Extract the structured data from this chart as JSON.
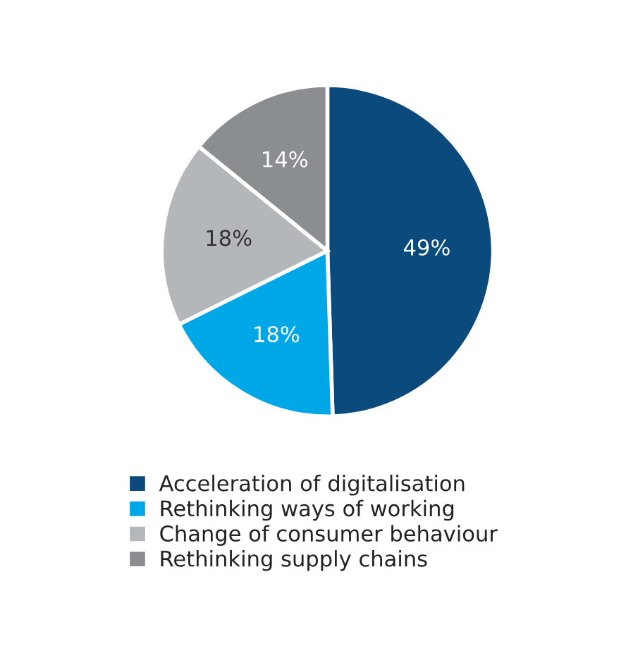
{
  "chart_data": {
    "type": "pie",
    "categories": [
      "Acceleration of digitalisation",
      "Rethinking ways of working",
      "Change of consumer behaviour",
      "Rethinking supply chains"
    ],
    "values": [
      49,
      18,
      18,
      14
    ],
    "colors": [
      "#0b4a7c",
      "#00a7e7",
      "#b4b7b9",
      "#8b8e91"
    ],
    "value_labels": [
      "49%",
      "18%",
      "18%",
      "14%"
    ],
    "legend": "bottom"
  }
}
